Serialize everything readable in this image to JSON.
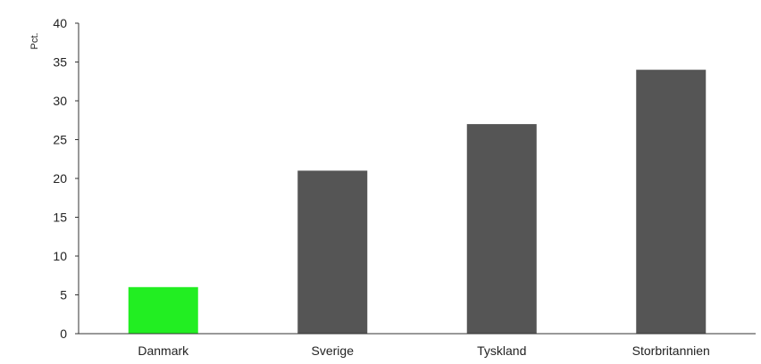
{
  "chart_data": {
    "type": "bar",
    "title": "",
    "xlabel": "",
    "ylabel": "Pct.",
    "ylim": [
      0,
      40
    ],
    "yticks": [
      0,
      5,
      10,
      15,
      20,
      25,
      30,
      35,
      40
    ],
    "grid": false,
    "categories": [
      "Danmark",
      "Sverige",
      "Tyskland",
      "Storbritannien"
    ],
    "values": [
      6,
      21,
      27,
      34
    ],
    "colors": [
      "#22ee22",
      "#555555",
      "#555555",
      "#555555"
    ],
    "axis_color": "#333333",
    "text_color": "#222222"
  }
}
